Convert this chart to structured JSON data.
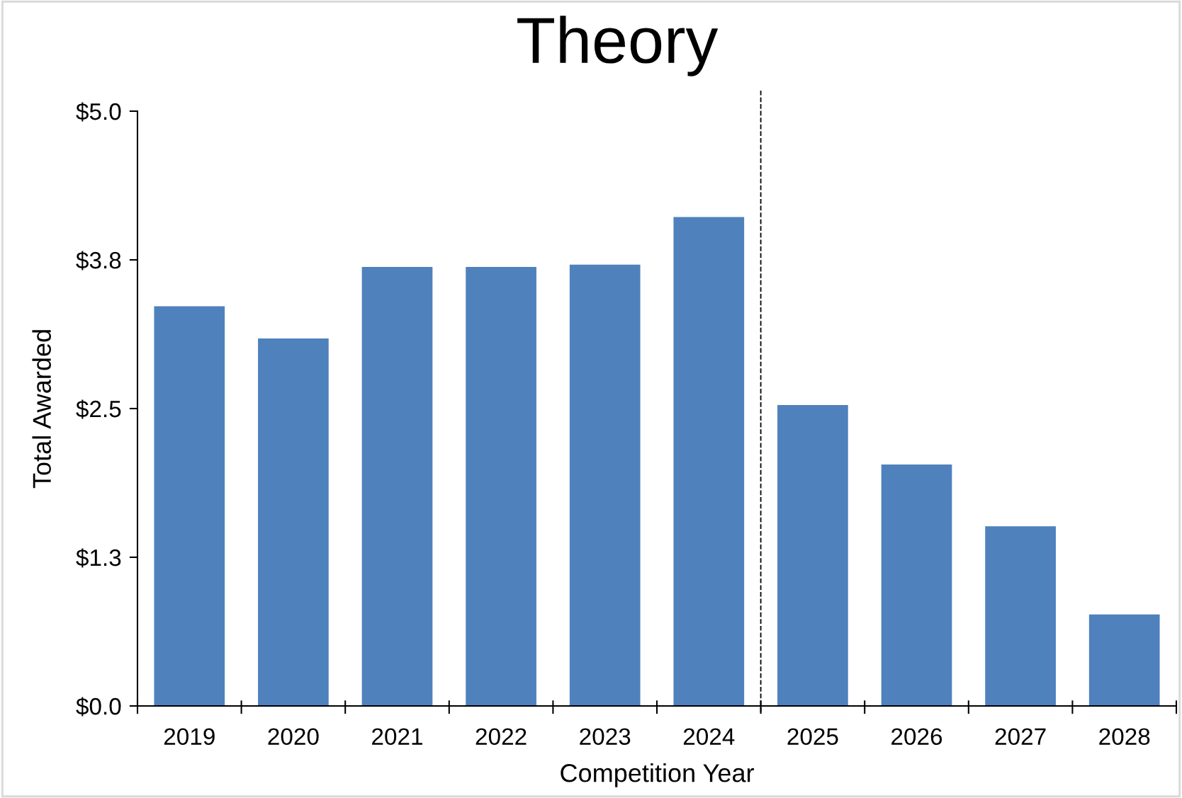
{
  "chart_data": {
    "type": "bar",
    "title": "Theory",
    "xlabel": "Competition Year",
    "ylabel": "Total Awarded",
    "x": [
      2019,
      2020,
      2021,
      2022,
      2023,
      2024,
      2025,
      2026,
      2027,
      2028
    ],
    "values": [
      3.36,
      3.09,
      3.69,
      3.69,
      3.71,
      4.11,
      2.53,
      2.03,
      1.51,
      0.77
    ],
    "color": "#4f81bd",
    "xlim": [
      2018.5,
      2028.5
    ],
    "xticks": [
      2019,
      2020,
      2021,
      2022,
      2023,
      2024,
      2025,
      2026,
      2027,
      2028
    ],
    "ylim": [
      0,
      5
    ],
    "yticks": [
      {
        "value": 0,
        "label": "$0.0"
      },
      {
        "value": 1.25,
        "label": "$1.3"
      },
      {
        "value": 2.5,
        "label": "$2.5"
      },
      {
        "value": 3.75,
        "label": "$3.8"
      },
      {
        "value": 5,
        "label": "$5.0"
      }
    ],
    "ref_lines": [
      {
        "axis": "x",
        "value": 2024.5,
        "color": "#000000",
        "line_style": "dashed"
      }
    ],
    "grid": false,
    "legend": false
  }
}
